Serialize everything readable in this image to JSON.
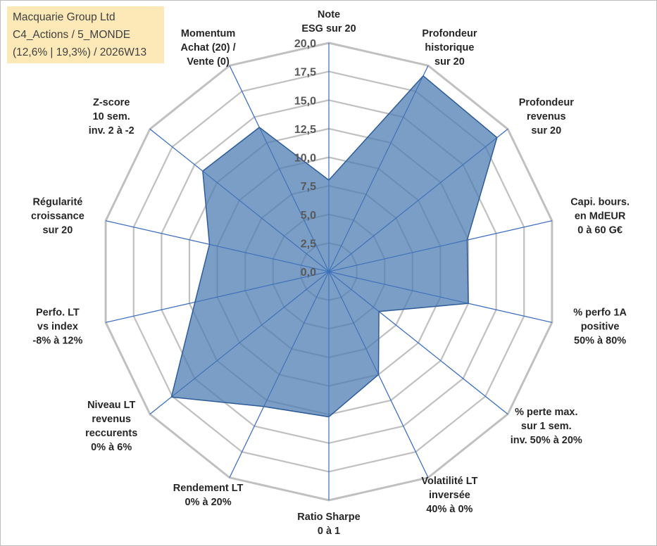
{
  "chart_data": {
    "type": "radar",
    "title_lines": [
      "Macquarie Group Ltd",
      "C4_Actions / 5_MONDE",
      "(12,6% | 19,3%) / 2026W13"
    ],
    "rmin": 0,
    "rmax": 20,
    "tick_labels": [
      "0,0",
      "2,5",
      "5,0",
      "7,5",
      "10,0",
      "12,5",
      "15,0",
      "17,5",
      "20,0"
    ],
    "axes": [
      {
        "label": [
          "Note",
          "ESG sur 20"
        ],
        "value": 8.0
      },
      {
        "label": [
          "Profondeur",
          "historique",
          "sur 20"
        ],
        "value": 19.0
      },
      {
        "label": [
          "Profondeur",
          "revenus",
          "sur 20"
        ],
        "value": 18.8
      },
      {
        "label": [
          "Capi. bours.",
          "en MdEUR",
          "0 à 60 G€"
        ],
        "value": 12.4
      },
      {
        "label": [
          "% perfo 1A",
          "positive",
          "50% à 80%"
        ],
        "value": 12.5
      },
      {
        "label": [
          "% perte max.",
          "sur 1 sem.",
          "inv. 50% à 20%"
        ],
        "value": 5.6
      },
      {
        "label": [
          "Volatilité LT",
          "inversée",
          "40% à 0%"
        ],
        "value": 10.0
      },
      {
        "label": [
          "Ratio Sharpe",
          "0 à 1"
        ],
        "value": 12.7
      },
      {
        "label": [
          "Rendement LT",
          "0% à 20%"
        ],
        "value": 13.1
      },
      {
        "label": [
          "Niveau LT",
          "revenus",
          "reccurents",
          "0% à 6%"
        ],
        "value": 17.6
      },
      {
        "label": [
          "Perfo. LT",
          "vs index",
          "-8% à 12%"
        ],
        "value": 12.0
      },
      {
        "label": [
          "Régularité",
          "croissance",
          "sur 20"
        ],
        "value": 10.7
      },
      {
        "label": [
          "Z-score",
          "10 sem.",
          "inv. 2 à -2"
        ],
        "value": 14.1
      },
      {
        "label": [
          "Momentum",
          "Achat (20) /",
          "Vente (0)"
        ],
        "value": 14.0
      }
    ]
  },
  "colors": {
    "fill": "#4f7eb3",
    "fill_opacity": 0.75,
    "outline": "#2e5c99",
    "grid": "#c0c0c0",
    "spoke": "#3a6dc0",
    "title_bg": "#fde9b8"
  }
}
